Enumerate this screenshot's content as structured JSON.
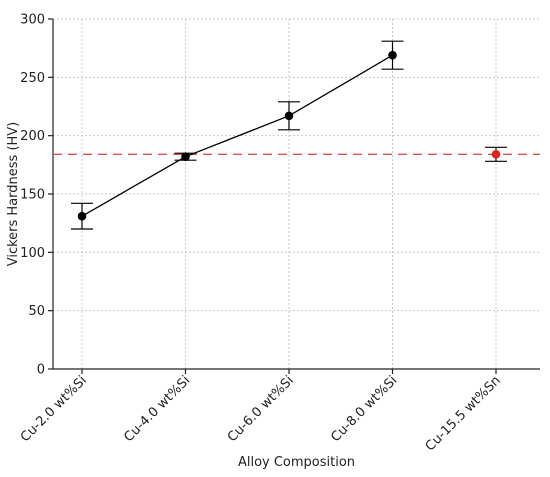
{
  "chart_data": {
    "type": "scatter",
    "xlabel": "Alloy Composition",
    "ylabel": "Vickers Hardness (HV)",
    "ylim": [
      0,
      300
    ],
    "yticks": [
      0,
      50,
      100,
      150,
      200,
      250,
      300
    ],
    "grid": true,
    "categories": [
      "Cu-2.0 wt%Si",
      "Cu-4.0 wt%Si",
      "Cu-6.0 wt%Si",
      "Cu-8.0 wt%Si",
      "Cu-15.5 wt%Sn"
    ],
    "series": [
      {
        "color": "#000000",
        "connected": true,
        "points": [
          {
            "category": "Cu-2.0 wt%Si",
            "value": 131,
            "error": 11
          },
          {
            "category": "Cu-4.0 wt%Si",
            "value": 182,
            "error": 3
          },
          {
            "category": "Cu-6.0 wt%Si",
            "value": 217,
            "error": 12
          },
          {
            "category": "Cu-8.0 wt%Si",
            "value": 269,
            "error": 12
          }
        ]
      },
      {
        "color": "#e02020",
        "connected": false,
        "points": [
          {
            "category": "Cu-15.5 wt%Sn",
            "value": 184,
            "error": 6
          }
        ]
      }
    ],
    "reference_line": {
      "value": 184,
      "color": "#d9534f",
      "style": "dashed"
    }
  }
}
